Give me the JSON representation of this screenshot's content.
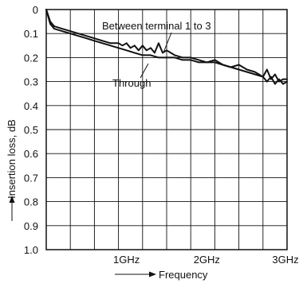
{
  "chart_data": {
    "type": "line",
    "title": "",
    "xlabel": "Frequency",
    "ylabel": "Insertion loss, dB",
    "x_unit": "GHz",
    "xlim": [
      0,
      3
    ],
    "ylim": [
      0,
      1.0
    ],
    "y_inverted": true,
    "grid": true,
    "x_ticks": [
      {
        "value": 1,
        "label": "1GHz"
      },
      {
        "value": 2,
        "label": "2GHz"
      },
      {
        "value": 3,
        "label": "3GHz"
      }
    ],
    "y_ticks": [
      {
        "value": 0,
        "label": "0"
      },
      {
        "value": 0.1,
        "label": "0.1"
      },
      {
        "value": 0.2,
        "label": "0.2"
      },
      {
        "value": 0.3,
        "label": "0.3"
      },
      {
        "value": 0.4,
        "label": "0.4"
      },
      {
        "value": 0.5,
        "label": "0.5"
      },
      {
        "value": 0.6,
        "label": "0.6"
      },
      {
        "value": 0.7,
        "label": "0.7"
      },
      {
        "value": 0.8,
        "label": "0.8"
      },
      {
        "value": 0.9,
        "label": "0.9"
      },
      {
        "value": 1.0,
        "label": "1.0"
      }
    ],
    "series": [
      {
        "name": "Between terminal 1 to 3",
        "x": [
          0.0,
          0.05,
          0.1,
          0.2,
          0.3,
          0.4,
          0.5,
          0.6,
          0.7,
          0.8,
          0.9,
          0.95,
          1.0,
          1.05,
          1.1,
          1.15,
          1.2,
          1.25,
          1.3,
          1.35,
          1.4,
          1.45,
          1.5,
          1.6,
          1.7,
          1.8,
          1.9,
          2.0,
          2.1,
          2.2,
          2.3,
          2.4,
          2.5,
          2.6,
          2.7,
          2.75,
          2.8,
          2.85,
          2.9,
          2.95,
          3.0
        ],
        "y": [
          0.0,
          0.05,
          0.07,
          0.08,
          0.09,
          0.1,
          0.11,
          0.12,
          0.13,
          0.14,
          0.14,
          0.15,
          0.14,
          0.16,
          0.15,
          0.17,
          0.15,
          0.17,
          0.16,
          0.18,
          0.14,
          0.18,
          0.17,
          0.19,
          0.2,
          0.2,
          0.21,
          0.22,
          0.21,
          0.23,
          0.24,
          0.23,
          0.25,
          0.26,
          0.28,
          0.25,
          0.29,
          0.27,
          0.3,
          0.29,
          0.29
        ]
      },
      {
        "name": "Through",
        "x": [
          0.0,
          0.05,
          0.1,
          0.2,
          0.3,
          0.4,
          0.5,
          0.6,
          0.7,
          0.8,
          0.9,
          1.0,
          1.1,
          1.2,
          1.3,
          1.4,
          1.5,
          1.6,
          1.7,
          1.8,
          1.9,
          2.0,
          2.1,
          2.2,
          2.3,
          2.4,
          2.5,
          2.6,
          2.7,
          2.75,
          2.8,
          2.85,
          2.9,
          2.95,
          3.0
        ],
        "y": [
          0.0,
          0.06,
          0.08,
          0.09,
          0.1,
          0.11,
          0.12,
          0.13,
          0.14,
          0.15,
          0.16,
          0.17,
          0.18,
          0.19,
          0.19,
          0.2,
          0.2,
          0.2,
          0.21,
          0.21,
          0.22,
          0.22,
          0.22,
          0.23,
          0.24,
          0.25,
          0.26,
          0.27,
          0.28,
          0.3,
          0.28,
          0.31,
          0.29,
          0.31,
          0.3
        ]
      }
    ],
    "annotations": [
      {
        "text": "Between terminal 1 to 3",
        "points_to_series": 0
      },
      {
        "text": "Through",
        "points_to_series": 1
      }
    ]
  }
}
